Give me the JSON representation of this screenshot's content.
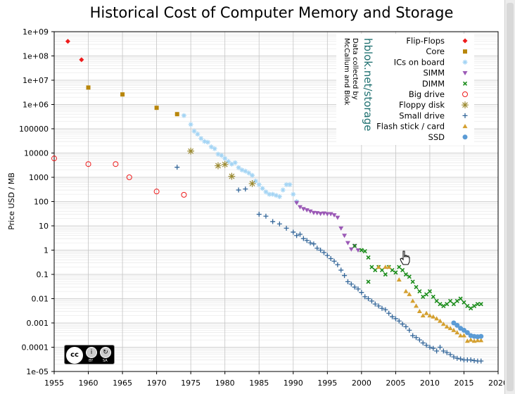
{
  "chart_data": {
    "type": "scatter",
    "title": "Historical Cost of Computer Memory and Storage",
    "ylabel": "Price USD / MB",
    "xlabel": "",
    "xlim": [
      1955,
      2020
    ],
    "ylim": [
      1e-05,
      1000000000
    ],
    "yscale": "log",
    "grid": true,
    "legend_position": "top-right",
    "xticks": [
      "1955",
      "1960",
      "1965",
      "1970",
      "1975",
      "1980",
      "1985",
      "1990",
      "1995",
      "2000",
      "2005",
      "2010",
      "2015",
      "2020"
    ],
    "yticks": [
      "1e+09",
      "1e+08",
      "1e+07",
      "1e+06",
      "100000",
      "10000",
      "1000",
      "100",
      "10",
      "1",
      "0.1",
      "0.01",
      "0.001",
      "0.0001",
      "1e-05"
    ],
    "annotation_title": "hblok.net/storage",
    "annotation_subtitle": "Data collected by McCallum and Blok",
    "series": [
      {
        "name": "Flip-Flops",
        "marker": "diamond",
        "color": "#ee1c1c",
        "points": [
          [
            1957,
            400000000
          ],
          [
            1959,
            70000000
          ]
        ]
      },
      {
        "name": "Core",
        "marker": "square",
        "color": "#b8860b",
        "points": [
          [
            1960,
            5000000
          ],
          [
            1965,
            2600000
          ],
          [
            1970,
            730000
          ],
          [
            1973,
            400000
          ]
        ]
      },
      {
        "name": "ICs on board",
        "marker": "star",
        "color": "#a3d4f4",
        "points": [
          [
            1974,
            350000
          ],
          [
            1975,
            150000
          ],
          [
            1975.5,
            80000
          ],
          [
            1976,
            60000
          ],
          [
            1976.5,
            40000
          ],
          [
            1977,
            30000
          ],
          [
            1977.5,
            28000
          ],
          [
            1978,
            18000
          ],
          [
            1978.5,
            15000
          ],
          [
            1979,
            9000
          ],
          [
            1979.5,
            8000
          ],
          [
            1980,
            6000
          ],
          [
            1980.5,
            4500
          ],
          [
            1981,
            3500
          ],
          [
            1981.5,
            4000
          ],
          [
            1982,
            2500
          ],
          [
            1982.5,
            2000
          ],
          [
            1983,
            1800
          ],
          [
            1983.5,
            1500
          ],
          [
            1984,
            1200
          ],
          [
            1984.5,
            700
          ],
          [
            1985,
            500
          ],
          [
            1985.5,
            350
          ],
          [
            1986,
            250
          ],
          [
            1986.5,
            200
          ],
          [
            1987,
            200
          ],
          [
            1987.5,
            180
          ],
          [
            1988,
            160
          ],
          [
            1988.5,
            300
          ],
          [
            1989,
            500
          ],
          [
            1989.5,
            500
          ],
          [
            1990,
            200
          ],
          [
            1990.5,
            100
          ]
        ]
      },
      {
        "name": "SIMM",
        "marker": "triangle-down",
        "color": "#9b59b6",
        "points": [
          [
            1990.5,
            90
          ],
          [
            1991,
            60
          ],
          [
            1991.5,
            50
          ],
          [
            1992,
            45
          ],
          [
            1992.5,
            40
          ],
          [
            1993,
            35
          ],
          [
            1993.5,
            34
          ],
          [
            1994,
            32
          ],
          [
            1994.5,
            33
          ],
          [
            1995,
            31
          ],
          [
            1995.5,
            31
          ],
          [
            1996,
            28
          ],
          [
            1996.5,
            22
          ],
          [
            1997,
            8
          ],
          [
            1997.5,
            4
          ],
          [
            1998,
            2
          ],
          [
            1998.5,
            1.1
          ],
          [
            1999,
            1.5
          ],
          [
            1999.5,
            1
          ]
        ]
      },
      {
        "name": "DIMM",
        "marker": "x",
        "color": "#1a8c1a",
        "points": [
          [
            1999,
            1.5
          ],
          [
            2000,
            1.0
          ],
          [
            2000.5,
            0.9
          ],
          [
            2001,
            0.5
          ],
          [
            2001.5,
            0.2
          ],
          [
            2002,
            0.15
          ],
          [
            2002.5,
            0.2
          ],
          [
            2003,
            0.15
          ],
          [
            2003.5,
            0.1
          ],
          [
            2004,
            0.2
          ],
          [
            2004.5,
            0.15
          ],
          [
            2005,
            0.12
          ],
          [
            2005.5,
            0.2
          ],
          [
            2006,
            0.15
          ],
          [
            2006.5,
            0.1
          ],
          [
            2007,
            0.08
          ],
          [
            2007.5,
            0.05
          ],
          [
            2008,
            0.03
          ],
          [
            2008.5,
            0.02
          ],
          [
            2009,
            0.012
          ],
          [
            2009.5,
            0.015
          ],
          [
            2010,
            0.02
          ],
          [
            2010.5,
            0.012
          ],
          [
            2011,
            0.008
          ],
          [
            2011.5,
            0.006
          ],
          [
            2012,
            0.005
          ],
          [
            2012.5,
            0.006
          ],
          [
            2013,
            0.008
          ],
          [
            2013.5,
            0.006
          ],
          [
            2014,
            0.008
          ],
          [
            2014.5,
            0.01
          ],
          [
            2015,
            0.007
          ],
          [
            2015.5,
            0.005
          ],
          [
            2016,
            0.004
          ],
          [
            2016.5,
            0.005
          ],
          [
            2017,
            0.006
          ],
          [
            2017.5,
            0.006
          ],
          [
            2001,
            0.05
          ]
        ]
      },
      {
        "name": "Big drive",
        "marker": "circle-open",
        "color": "#ee1c1c",
        "points": [
          [
            1955,
            6000
          ],
          [
            1960,
            3500
          ],
          [
            1964,
            3500
          ],
          [
            1966,
            1000
          ],
          [
            1970,
            260
          ],
          [
            1974,
            190
          ]
        ]
      },
      {
        "name": "Floppy disk",
        "marker": "asterisk",
        "color": "#9b8a32",
        "points": [
          [
            1975,
            12000
          ],
          [
            1979,
            3000
          ],
          [
            1980,
            3400
          ],
          [
            1981,
            1100
          ],
          [
            1984,
            550
          ]
        ]
      },
      {
        "name": "Small drive",
        "marker": "plus",
        "color": "#336699",
        "points": [
          [
            1973,
            2600
          ],
          [
            1982,
            300
          ],
          [
            1983,
            330
          ],
          [
            1985,
            30
          ],
          [
            1986,
            25
          ],
          [
            1987,
            15
          ],
          [
            1988,
            12
          ],
          [
            1989,
            8
          ],
          [
            1990,
            5.5
          ],
          [
            1990.5,
            4
          ],
          [
            1991,
            4.5
          ],
          [
            1991.5,
            3
          ],
          [
            1992,
            2.5
          ],
          [
            1992.5,
            2
          ],
          [
            1993,
            1.8
          ],
          [
            1993.5,
            1.2
          ],
          [
            1994,
            1
          ],
          [
            1994.5,
            0.8
          ],
          [
            1995,
            0.6
          ],
          [
            1995.5,
            0.45
          ],
          [
            1996,
            0.35
          ],
          [
            1996.5,
            0.25
          ],
          [
            1997,
            0.15
          ],
          [
            1997.5,
            0.09
          ],
          [
            1998,
            0.05
          ],
          [
            1998.5,
            0.04
          ],
          [
            1999,
            0.03
          ],
          [
            1999.5,
            0.025
          ],
          [
            2000,
            0.018
          ],
          [
            2000.5,
            0.012
          ],
          [
            2001,
            0.01
          ],
          [
            2001.5,
            0.008
          ],
          [
            2002,
            0.006
          ],
          [
            2002.5,
            0.005
          ],
          [
            2003,
            0.004
          ],
          [
            2003.5,
            0.0035
          ],
          [
            2004,
            0.0025
          ],
          [
            2004.5,
            0.0018
          ],
          [
            2005,
            0.0015
          ],
          [
            2005.5,
            0.0012
          ],
          [
            2006,
            0.0009
          ],
          [
            2006.5,
            0.0007
          ],
          [
            2007,
            0.0005
          ],
          [
            2007.5,
            0.0003
          ],
          [
            2008,
            0.00025
          ],
          [
            2008.5,
            0.0002
          ],
          [
            2009,
            0.00015
          ],
          [
            2009.5,
            0.00012
          ],
          [
            2010,
            0.0001
          ],
          [
            2010.5,
            9e-05
          ],
          [
            2011,
            7e-05
          ],
          [
            2011.5,
            0.0001
          ],
          [
            2012,
            7e-05
          ],
          [
            2012.5,
            6e-05
          ],
          [
            2013,
            5e-05
          ],
          [
            2013.5,
            4e-05
          ],
          [
            2014,
            3.5e-05
          ],
          [
            2014.5,
            3.3e-05
          ],
          [
            2015,
            3e-05
          ],
          [
            2015.5,
            3e-05
          ],
          [
            2016,
            3e-05
          ],
          [
            2016.5,
            2.8e-05
          ],
          [
            2017,
            2.7e-05
          ],
          [
            2017.5,
            2.7e-05
          ]
        ]
      },
      {
        "name": "Flash stick / card",
        "marker": "triangle-up",
        "color": "#d4a030",
        "points": [
          [
            2002.5,
            0.2
          ],
          [
            2003.5,
            0.2
          ],
          [
            2004,
            0.2
          ],
          [
            2005.5,
            0.06
          ],
          [
            2006.5,
            0.02
          ],
          [
            2007,
            0.015
          ],
          [
            2007.5,
            0.008
          ],
          [
            2008,
            0.005
          ],
          [
            2008.5,
            0.003
          ],
          [
            2009,
            0.002
          ],
          [
            2009.5,
            0.0025
          ],
          [
            2010,
            0.002
          ],
          [
            2010.5,
            0.0018
          ],
          [
            2011,
            0.0015
          ],
          [
            2011.5,
            0.0012
          ],
          [
            2012,
            0.0009
          ],
          [
            2012.5,
            0.0007
          ],
          [
            2013,
            0.0006
          ],
          [
            2013.5,
            0.0005
          ],
          [
            2014,
            0.0004
          ],
          [
            2014.5,
            0.0003
          ],
          [
            2015,
            0.0003
          ],
          [
            2015.5,
            0.00018
          ],
          [
            2016,
            0.0002
          ],
          [
            2016.5,
            0.00018
          ],
          [
            2017,
            0.00019
          ],
          [
            2017.5,
            0.00019
          ]
        ]
      },
      {
        "name": "SSD",
        "marker": "circle",
        "color": "#5b9bd5",
        "points": [
          [
            2013.5,
            0.001
          ],
          [
            2014,
            0.0008
          ],
          [
            2014.5,
            0.0006
          ],
          [
            2015,
            0.0005
          ],
          [
            2015.5,
            0.0004
          ],
          [
            2016,
            0.0003
          ],
          [
            2016.5,
            0.00028
          ],
          [
            2017,
            0.00027
          ],
          [
            2017.5,
            0.00028
          ]
        ]
      }
    ]
  },
  "license": {
    "cc": "cc",
    "by": "BY",
    "sa": "SA"
  }
}
